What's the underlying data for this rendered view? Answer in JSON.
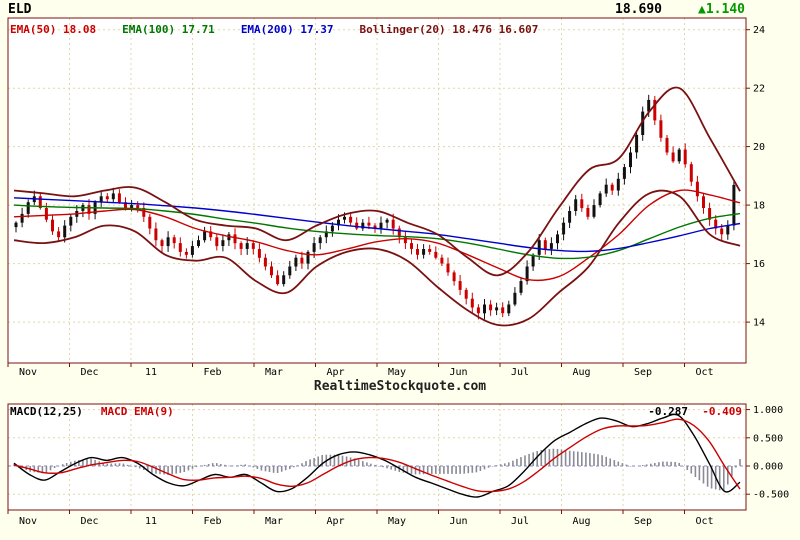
{
  "header": {
    "symbol": "ELD",
    "last_price": "18.690",
    "change": "▲1.140"
  },
  "legend": {
    "items": [
      {
        "label": "EMA(50)",
        "value": "18.08",
        "color": "#cc0000"
      },
      {
        "label": "EMA(100)",
        "value": "17.71",
        "color": "#007700"
      },
      {
        "label": "EMA(200)",
        "value": "17.37",
        "color": "#0000cc"
      },
      {
        "label": "Bollinger(20)",
        "value": "18.476 16.607",
        "color": "#7a1111"
      }
    ]
  },
  "watermark": "RealtimeStockquote.com",
  "macd_header": {
    "macd_label": "MACD(12,25)",
    "signal_label": "MACD EMA(9)",
    "macd_value": "-0.287",
    "signal_value": "-0.409",
    "macd_color": "#000000",
    "signal_color": "#cc0000"
  },
  "colors": {
    "background": "#ffffee",
    "plot_bg": "#ffffff",
    "frame": "#7a1111",
    "grid": "#ded8a8",
    "zero_line": "#8888bb",
    "candle_up": "#111111",
    "candle_down": "#cc0000",
    "histogram": "#8a8a96",
    "change_up": "#009900",
    "axis_text": "#000000"
  },
  "chart_data": [
    {
      "type": "candlestick",
      "title": "ELD",
      "x_tick_labels": [
        "Nov",
        "Dec",
        "11",
        "Feb",
        "Mar",
        "Apr",
        "May",
        "Jun",
        "Jul",
        "Aug",
        "Sep",
        "Oct"
      ],
      "yticks": [
        14,
        16,
        18,
        20,
        22,
        24
      ],
      "ylim": [
        12.6,
        24.4
      ],
      "note": "close prices estimated from candlesticks, ~2-3 day sampling; up candles black, down candles red",
      "close": [
        17.4,
        17.7,
        18.1,
        18.3,
        17.9,
        17.5,
        17.1,
        16.9,
        17.3,
        17.6,
        17.8,
        18.0,
        17.7,
        18.1,
        18.3,
        18.2,
        18.4,
        18.1,
        17.9,
        18.0,
        17.9,
        17.6,
        17.2,
        16.8,
        16.6,
        16.9,
        16.7,
        16.4,
        16.3,
        16.6,
        16.8,
        17.1,
        16.9,
        16.6,
        16.8,
        17.0,
        16.7,
        16.5,
        16.7,
        16.5,
        16.2,
        15.9,
        15.6,
        15.3,
        15.6,
        15.9,
        16.2,
        16.0,
        16.4,
        16.7,
        16.9,
        17.1,
        17.3,
        17.5,
        17.6,
        17.4,
        17.2,
        17.4,
        17.3,
        17.2,
        17.4,
        17.5,
        17.2,
        16.9,
        16.7,
        16.5,
        16.3,
        16.5,
        16.4,
        16.2,
        16.0,
        15.7,
        15.4,
        15.1,
        14.8,
        14.5,
        14.3,
        14.6,
        14.4,
        14.5,
        14.3,
        14.6,
        15.0,
        15.4,
        15.9,
        16.3,
        16.8,
        16.5,
        16.7,
        17.0,
        17.4,
        17.8,
        18.2,
        17.9,
        17.6,
        18.0,
        18.4,
        18.7,
        18.5,
        18.9,
        19.3,
        19.8,
        20.4,
        21.2,
        21.6,
        20.9,
        20.3,
        19.8,
        19.5,
        19.9,
        19.4,
        18.8,
        18.3,
        17.9,
        17.5,
        17.2,
        17.0,
        17.3,
        18.69
      ],
      "overlays": [
        {
          "name": "EMA(50)",
          "color": "#cc0000",
          "values": [
            17.6,
            17.65,
            17.7,
            17.8,
            17.85,
            17.6,
            17.2,
            16.95,
            16.75,
            16.45,
            16.3,
            16.5,
            16.75,
            16.85,
            16.7,
            16.3,
            15.85,
            15.45,
            15.55,
            16.2,
            17.0,
            18.0,
            18.5,
            18.35,
            18.08
          ]
        },
        {
          "name": "EMA(100)",
          "color": "#007700",
          "values": [
            18.0,
            17.95,
            17.92,
            17.9,
            17.88,
            17.8,
            17.68,
            17.52,
            17.38,
            17.22,
            17.1,
            17.02,
            16.96,
            16.92,
            16.85,
            16.7,
            16.5,
            16.3,
            16.18,
            16.22,
            16.45,
            16.85,
            17.25,
            17.55,
            17.71
          ]
        },
        {
          "name": "EMA(200)",
          "color": "#0000cc",
          "values": [
            18.25,
            18.2,
            18.15,
            18.1,
            18.05,
            17.98,
            17.9,
            17.8,
            17.68,
            17.55,
            17.42,
            17.3,
            17.2,
            17.1,
            17.0,
            16.85,
            16.7,
            16.55,
            16.45,
            16.42,
            16.52,
            16.72,
            16.95,
            17.2,
            17.37
          ]
        },
        {
          "name": "Bollinger upper",
          "color": "#7a1111",
          "values": [
            18.5,
            18.4,
            18.3,
            18.5,
            18.6,
            18.1,
            17.5,
            17.3,
            17.2,
            16.8,
            17.3,
            17.7,
            17.8,
            17.4,
            17.0,
            16.2,
            15.6,
            16.4,
            17.9,
            19.2,
            19.6,
            21.2,
            22.0,
            20.3,
            18.476
          ]
        },
        {
          "name": "Bollinger lower",
          "color": "#7a1111",
          "values": [
            16.8,
            16.7,
            16.9,
            17.3,
            17.1,
            16.3,
            16.1,
            16.2,
            15.4,
            15.0,
            15.9,
            16.4,
            16.5,
            16.1,
            15.2,
            14.4,
            13.9,
            14.1,
            15.0,
            15.9,
            17.4,
            18.4,
            18.3,
            17.0,
            16.607
          ]
        }
      ]
    },
    {
      "type": "line",
      "title": "MACD(12,25) with MACD EMA(9) signal and histogram",
      "x_tick_labels": [
        "Nov",
        "Dec",
        "11",
        "Feb",
        "Mar",
        "Apr",
        "May",
        "Jun",
        "Jul",
        "Aug",
        "Sep",
        "Oct"
      ],
      "yticks": [
        1.0,
        0.5,
        0.0,
        -0.5
      ],
      "ytick_labels": [
        "1.000",
        "0.500",
        "0.000",
        "-0.500"
      ],
      "ylim": [
        -0.78,
        1.1
      ],
      "histogram": "macd_minus_signal",
      "series": [
        {
          "name": "MACD(12,25)",
          "color": "#000000",
          "values": [
            0.05,
            -0.15,
            -0.25,
            -0.1,
            0.05,
            0.15,
            0.1,
            0.15,
            0.05,
            -0.15,
            -0.3,
            -0.35,
            -0.25,
            -0.15,
            -0.2,
            -0.15,
            -0.3,
            -0.45,
            -0.4,
            -0.2,
            0.05,
            0.2,
            0.25,
            0.2,
            0.1,
            -0.05,
            -0.2,
            -0.3,
            -0.4,
            -0.5,
            -0.55,
            -0.45,
            -0.35,
            -0.1,
            0.2,
            0.45,
            0.6,
            0.75,
            0.85,
            0.8,
            0.7,
            0.75,
            0.85,
            0.9,
            0.55,
            0.05,
            -0.45,
            -0.287
          ]
        },
        {
          "name": "MACD EMA(9)",
          "color": "#cc0000",
          "values": [
            0.02,
            -0.05,
            -0.12,
            -0.12,
            -0.05,
            0.02,
            0.06,
            0.1,
            0.08,
            -0.02,
            -0.14,
            -0.24,
            -0.25,
            -0.21,
            -0.2,
            -0.18,
            -0.22,
            -0.32,
            -0.36,
            -0.3,
            -0.15,
            0.0,
            0.11,
            0.15,
            0.13,
            0.06,
            -0.05,
            -0.16,
            -0.26,
            -0.36,
            -0.44,
            -0.45,
            -0.41,
            -0.28,
            -0.08,
            0.14,
            0.33,
            0.51,
            0.65,
            0.71,
            0.71,
            0.72,
            0.77,
            0.83,
            0.72,
            0.44,
            0.0,
            -0.409
          ]
        }
      ]
    }
  ]
}
